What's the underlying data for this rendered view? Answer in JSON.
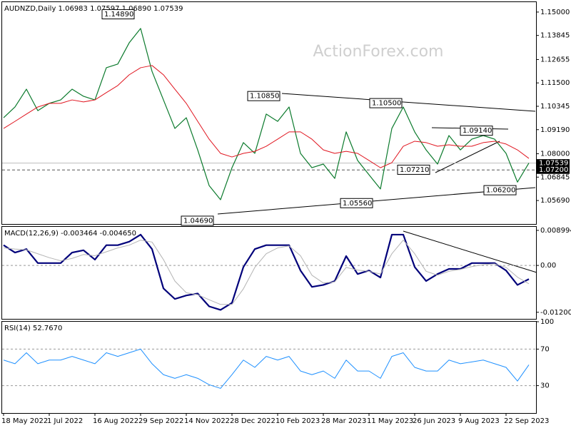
{
  "chart_data": [
    {
      "type": "line",
      "title": "AUDNZD,Daily  1.06983 1.07597 1.06890 1.07539",
      "watermark": "ActionForex.com",
      "ylim": [
        1.0453,
        1.1549
      ],
      "yticks": [
        {
          "value": 1.15,
          "label": "1.15000"
        },
        1.13845,
        1.12655,
        {
          "value": 1.115,
          "label": "1.11500"
        },
        1.10345,
        {
          "value": 1.0919,
          "label": "1.09190"
        },
        {
          "value": 1.08,
          "label": "1.08000"
        },
        1.06845,
        {
          "value": 1.0569,
          "label": "1.05690"
        }
      ],
      "series": [
        {
          "color": "#0b7a2c",
          "width": 1.2,
          "values": [
            1.0978,
            1.1031,
            1.1119,
            1.1013,
            1.1049,
            1.1066,
            1.1119,
            1.1084,
            1.1066,
            1.1225,
            1.1243,
            1.1348,
            1.1419,
            1.1207,
            1.1066,
            1.0925,
            1.0978,
            1.0819,
            1.0643,
            1.0573,
            1.0731,
            1.0855,
            1.0802,
            1.0996,
            1.096,
            1.1031,
            1.0802,
            1.0731,
            1.0749,
            1.0678,
            1.0908,
            1.0767,
            1.0696,
            1.0626,
            1.0925,
            1.1031,
            1.0908,
            1.0819,
            1.0749,
            1.089,
            1.0819,
            1.0872,
            1.089,
            1.0872,
            1.0802,
            1.066,
            1.0754
          ]
        },
        {
          "color": "#e0141e",
          "width": 1,
          "values": [
            1.0925,
            1.096,
            1.0996,
            1.1031,
            1.1049,
            1.1049,
            1.1066,
            1.1056,
            1.1066,
            1.1102,
            1.1137,
            1.119,
            1.1225,
            1.1236,
            1.119,
            1.1119,
            1.1049,
            1.096,
            1.0872,
            1.0802,
            1.0784,
            1.0802,
            1.0812,
            1.0837,
            1.0872,
            1.0908,
            1.0908,
            1.0872,
            1.0819,
            1.0802,
            1.0812,
            1.0802,
            1.0767,
            1.0731,
            1.0756,
            1.0837,
            1.0862,
            1.0855,
            1.0837,
            1.0844,
            1.0837,
            1.0837,
            1.0855,
            1.0862,
            1.0848,
            1.0819,
            1.0777
          ]
        }
      ],
      "price_lines": [
        {
          "value": 1.07539,
          "label": "1.07539"
        },
        {
          "value": 1.072,
          "label": "1.07200"
        }
      ],
      "annotations": [
        {
          "value": 1.1489,
          "label": "1.14890"
        },
        {
          "value": 1.1085,
          "label": "1.10850"
        },
        {
          "value": 1.105,
          "label": "1.10500"
        },
        {
          "value": 1.0914,
          "label": "1.09140"
        },
        {
          "value": 1.0721,
          "label": "1.07210"
        },
        {
          "value": 1.062,
          "label": "1.06200"
        },
        {
          "value": 1.0556,
          "label": "1.05560"
        },
        {
          "value": 1.0469,
          "label": "1.04690"
        }
      ]
    },
    {
      "type": "line",
      "title": "MACD(12,26,9) -0.003464 -0.004650",
      "ylim": [
        -0.0137,
        0.0099
      ],
      "yticks": [
        0.008994,
        {
          "value": 0,
          "label": "0.00"
        },
        -0.012008
      ],
      "levels": [
        0
      ],
      "series": [
        {
          "color": "#00007a",
          "width": 2.2,
          "values": [
            0.0052,
            0.0033,
            0.0042,
            0.0006,
            0.0006,
            0.0006,
            0.0033,
            0.0039,
            0.0015,
            0.0052,
            0.0052,
            0.0061,
            0.0079,
            0.0042,
            -0.0059,
            -0.0086,
            -0.0077,
            -0.0072,
            -0.0105,
            -0.0114,
            -0.0096,
            -0.0004,
            0.0042,
            0.0052,
            0.0052,
            0.0052,
            -0.0013,
            -0.0055,
            -0.005,
            -0.004,
            0.0024,
            -0.0022,
            -0.0013,
            -0.0031,
            0.0079,
            0.0079,
            -0.0004,
            -0.004,
            -0.0022,
            -0.0009,
            -0.0009,
            0.0006,
            0.0006,
            0.0006,
            -0.0013,
            -0.005,
            -0.0035
          ]
        },
        {
          "color": "#b4b4b4",
          "width": 1,
          "values": [
            0.0045,
            0.0042,
            0.004,
            0.003,
            0.002,
            0.0012,
            0.0018,
            0.0028,
            0.0025,
            0.0035,
            0.0045,
            0.0052,
            0.0065,
            0.006,
            0.0015,
            -0.004,
            -0.007,
            -0.0075,
            -0.0088,
            -0.01,
            -0.01,
            -0.006,
            -0.0005,
            0.003,
            0.0045,
            0.005,
            0.0025,
            -0.0025,
            -0.0045,
            -0.0042,
            -0.0005,
            -0.0012,
            -0.0015,
            -0.0022,
            0.003,
            0.0065,
            0.003,
            -0.0015,
            -0.0025,
            -0.0015,
            -0.001,
            -0.0003,
            0.0002,
            0.0004,
            -0.0005,
            -0.003,
            -0.0047
          ]
        }
      ]
    },
    {
      "type": "line",
      "title": "RSI(14) 52.7670",
      "ylim": [
        0,
        100
      ],
      "yticks": [
        100,
        70,
        30
      ],
      "levels": [
        70,
        30
      ],
      "categories": [
        "18 May 2022",
        null,
        null,
        null,
        "1 Jul 2022",
        null,
        null,
        null,
        "16 Aug 2022",
        null,
        null,
        null,
        "29 Sep 2022",
        null,
        null,
        null,
        "14 Nov 2022",
        null,
        null,
        null,
        "28 Dec 2022",
        null,
        null,
        null,
        "10 Feb 2023",
        null,
        null,
        null,
        "28 Mar 2023",
        null,
        null,
        null,
        "11 May 2023",
        null,
        null,
        null,
        "26 Jun 2023",
        null,
        null,
        null,
        "9 Aug 2023",
        null,
        null,
        null,
        "22 Sep 2023",
        null,
        null
      ],
      "series": [
        {
          "color": "#1e90ff",
          "width": 1,
          "values": [
            58,
            54,
            66,
            54,
            58,
            58,
            62,
            58,
            54,
            66,
            62,
            66,
            70,
            54,
            42,
            38,
            42,
            38,
            31,
            27,
            42,
            58,
            50,
            62,
            58,
            62,
            46,
            42,
            46,
            38,
            58,
            46,
            46,
            38,
            62,
            66,
            50,
            46,
            46,
            58,
            54,
            56,
            58,
            54,
            50,
            35,
            52.767
          ]
        }
      ]
    }
  ]
}
